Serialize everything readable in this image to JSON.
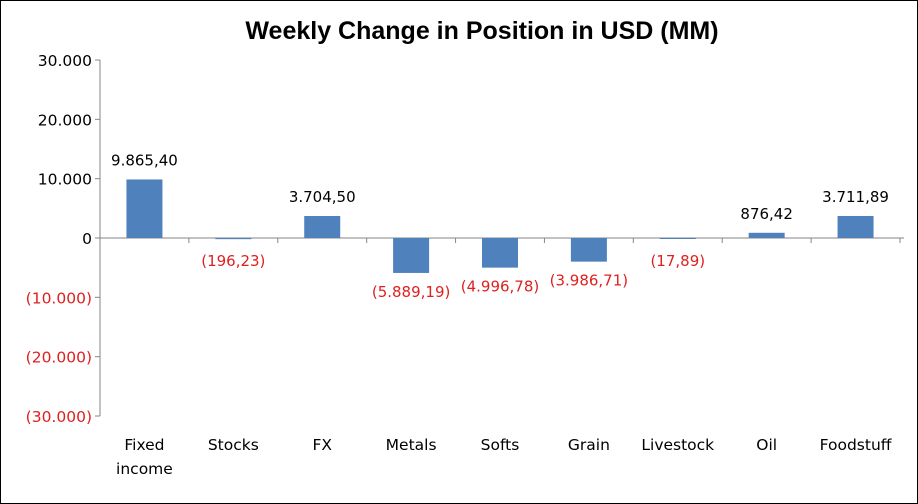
{
  "colors": {
    "bar": "#4f81bd",
    "positive_text": "#000000",
    "negative_text": "#e02020",
    "axis": "#868686"
  },
  "chart_data": {
    "type": "bar",
    "title": "Weekly Change in Position in USD (MM)",
    "xlabel": "",
    "ylabel": "",
    "categories": [
      "Fixed income",
      "Stocks",
      "FX",
      "Metals",
      "Softs",
      "Grain",
      "Livestock",
      "Oil",
      "Foodstuff"
    ],
    "category_lines": [
      [
        "Fixed",
        "income"
      ],
      [
        "Stocks"
      ],
      [
        "FX"
      ],
      [
        "Metals"
      ],
      [
        "Softs"
      ],
      [
        "Grain"
      ],
      [
        "Livestock"
      ],
      [
        "Oil"
      ],
      [
        "Foodstuff"
      ]
    ],
    "values": [
      9865.4,
      -196.23,
      3704.5,
      -5889.19,
      -4996.78,
      -3986.71,
      -17.89,
      876.42,
      3711.89
    ],
    "data_labels": [
      "9.865,40",
      "(196,23)",
      "3.704,50",
      "(5.889,19)",
      "(4.996,78)",
      "(3.986,71)",
      "(17,89)",
      "876,42",
      "3.711,89"
    ],
    "ylim": [
      -30000,
      30000
    ],
    "yticks": [
      30000,
      20000,
      10000,
      0,
      -10000,
      -20000,
      -30000
    ],
    "ytick_labels": [
      "30.000",
      "20.000",
      "10.000",
      "0",
      "(10.000)",
      "(20.000)",
      "(30.000)"
    ],
    "grid": false,
    "legend": "none"
  }
}
